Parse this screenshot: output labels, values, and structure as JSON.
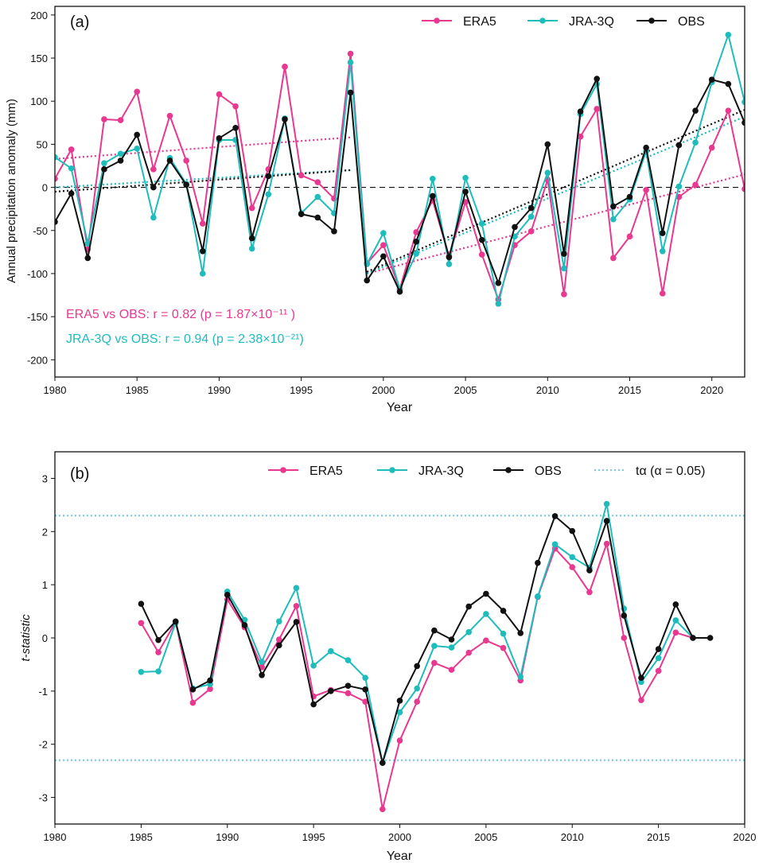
{
  "colors": {
    "era5": "#e8388f",
    "jra": "#1fbcbc",
    "obs": "#111111",
    "talpha": "#7ccfe0"
  },
  "panel_a": {
    "label": "(a)",
    "ylabel": "Annual precipitation anomaly (mm)",
    "xlabel": "Year",
    "legend": [
      "ERA5",
      "JRA-3Q",
      "OBS"
    ],
    "annotation_era5": "ERA5 vs OBS: r = 0.82 (p = 1.87×10⁻¹¹ )",
    "annotation_jra": "JRA-3Q vs OBS: r = 0.94 (p = 2.38×10⁻²¹)"
  },
  "panel_b": {
    "label": "(b)",
    "ylabel": "t-statistic",
    "xlabel": "Year",
    "legend": [
      "ERA5",
      "JRA-3Q",
      "OBS"
    ],
    "legend_talpha": "tα (α = 0.05)"
  },
  "chart_data": [
    {
      "type": "line",
      "xlabel": "Year",
      "ylabel": "Annual precipitation anomaly (mm)",
      "xlim": [
        1980,
        2022
      ],
      "ylim": [
        -220,
        210
      ],
      "xticks": [
        1980,
        1985,
        1990,
        1995,
        2000,
        2005,
        2010,
        2015,
        2020
      ],
      "yticks": [
        -200,
        -150,
        -100,
        -50,
        0,
        50,
        100,
        150,
        200
      ],
      "legend_position": "top-right",
      "x": [
        1980,
        1981,
        1982,
        1983,
        1984,
        1985,
        1986,
        1987,
        1988,
        1989,
        1990,
        1991,
        1992,
        1993,
        1994,
        1995,
        1996,
        1997,
        1998,
        1999,
        2000,
        2001,
        2002,
        2003,
        2004,
        2005,
        2006,
        2007,
        2008,
        2009,
        2010,
        2011,
        2012,
        2013,
        2014,
        2015,
        2016,
        2017,
        2018,
        2019,
        2020,
        2021,
        2022
      ],
      "series": [
        {
          "name": "ERA5",
          "values": [
            10,
            44,
            -72,
            79,
            78,
            111,
            21,
            83,
            31,
            -42,
            108,
            94,
            -24,
            21,
            140,
            14,
            6,
            -13,
            155,
            -88,
            -67,
            -118,
            -52,
            -15,
            -80,
            -17,
            -78,
            -130,
            -67,
            -51,
            9,
            -124,
            59,
            91,
            -82,
            -57,
            -3,
            -123,
            -11,
            3,
            46,
            89,
            -2
          ]
        },
        {
          "name": "JRA-3Q",
          "values": [
            35,
            22,
            -65,
            28,
            39,
            45,
            -35,
            34,
            4,
            -100,
            55,
            55,
            -71,
            -8,
            80,
            -30,
            -11,
            -30,
            145,
            -89,
            -53,
            -118,
            -77,
            10,
            -89,
            11,
            -42,
            -135,
            -57,
            -34,
            17,
            -94,
            85,
            120,
            -37,
            -14,
            42,
            -74,
            1,
            52,
            122,
            177,
            99
          ]
        },
        {
          "name": "OBS",
          "values": [
            -40,
            -7,
            -82,
            21,
            31,
            61,
            0,
            31,
            3,
            -74,
            57,
            69,
            -59,
            13,
            79,
            -31,
            -35,
            -51,
            110,
            -108,
            -80,
            -121,
            -63,
            -10,
            -81,
            -5,
            -61,
            -111,
            -46,
            -24,
            50,
            -77,
            88,
            126,
            -22,
            -11,
            46,
            -53,
            49,
            89,
            125,
            120,
            75
          ]
        }
      ],
      "trend_lines": [
        {
          "name": "ERA5",
          "segments": [
            {
              "x": [
                1980,
                1998
              ],
              "y": [
                33,
                58
              ]
            },
            {
              "x": [
                1999,
                2022
              ],
              "y": [
                -100,
                15
              ]
            }
          ]
        },
        {
          "name": "JRA-3Q",
          "segments": [
            {
              "x": [
                1980,
                1998
              ],
              "y": [
                0,
                20
              ]
            },
            {
              "x": [
                1999,
                2022
              ],
              "y": [
                -100,
                82
              ]
            }
          ]
        },
        {
          "name": "OBS",
          "segments": [
            {
              "x": [
                1980,
                1998
              ],
              "y": [
                -5,
                20
              ]
            },
            {
              "x": [
                1999,
                2022
              ],
              "y": [
                -98,
                90
              ]
            }
          ]
        }
      ],
      "reference_line": 0
    },
    {
      "type": "line",
      "xlabel": "Year",
      "ylabel": "t-statistic",
      "xlim": [
        1980,
        2020
      ],
      "ylim": [
        -3.5,
        3.5
      ],
      "xticks": [
        1980,
        1985,
        1990,
        1995,
        2000,
        2005,
        2010,
        2015,
        2020
      ],
      "yticks": [
        -3,
        -2,
        -1,
        0,
        1,
        2,
        3
      ],
      "legend_position": "top-right",
      "x": [
        1985,
        1986,
        1987,
        1988,
        1989,
        1990,
        1991,
        1992,
        1993,
        1994,
        1995,
        1996,
        1997,
        1998,
        1999,
        2000,
        2001,
        2002,
        2003,
        2004,
        2005,
        2006,
        2007,
        2008,
        2009,
        2010,
        2011,
        2012,
        2013,
        2014,
        2015,
        2016,
        2017,
        2018
      ],
      "series": [
        {
          "name": "ERA5",
          "values": [
            0.28,
            -0.27,
            0.3,
            -1.22,
            -0.96,
            0.72,
            0.2,
            -0.55,
            -0.03,
            0.6,
            -1.1,
            -0.98,
            -1.04,
            -1.2,
            -3.22,
            -1.93,
            -1.2,
            -0.47,
            -0.6,
            -0.28,
            -0.05,
            -0.19,
            -0.8,
            0.77,
            1.68,
            1.33,
            0.86,
            1.77,
            0.0,
            -1.17,
            -0.62,
            0.1,
            0.0,
            null
          ]
        },
        {
          "name": "JRA-3Q",
          "values": [
            -0.64,
            -0.63,
            0.28,
            -0.95,
            -0.87,
            0.87,
            0.34,
            -0.45,
            0.31,
            0.94,
            -0.52,
            -0.25,
            -0.42,
            -0.75,
            -2.35,
            -1.4,
            -0.95,
            -0.15,
            -0.18,
            0.11,
            0.45,
            0.08,
            -0.73,
            0.78,
            1.76,
            1.52,
            1.32,
            2.52,
            0.55,
            -0.83,
            -0.38,
            0.33,
            0.0,
            null
          ]
        },
        {
          "name": "OBS",
          "values": [
            0.64,
            -0.04,
            0.31,
            -0.97,
            -0.8,
            0.81,
            0.24,
            -0.7,
            -0.14,
            0.3,
            -1.25,
            -1.0,
            -0.9,
            -0.97,
            -2.35,
            -1.18,
            -0.53,
            0.14,
            -0.03,
            0.59,
            0.83,
            0.51,
            0.09,
            1.41,
            2.29,
            2.01,
            1.27,
            2.2,
            0.42,
            -0.75,
            -0.21,
            0.63,
            0.0,
            0.0
          ]
        }
      ],
      "threshold_lines": [
        2.3,
        -2.3
      ],
      "threshold_name": "tα (α = 0.05)"
    }
  ]
}
